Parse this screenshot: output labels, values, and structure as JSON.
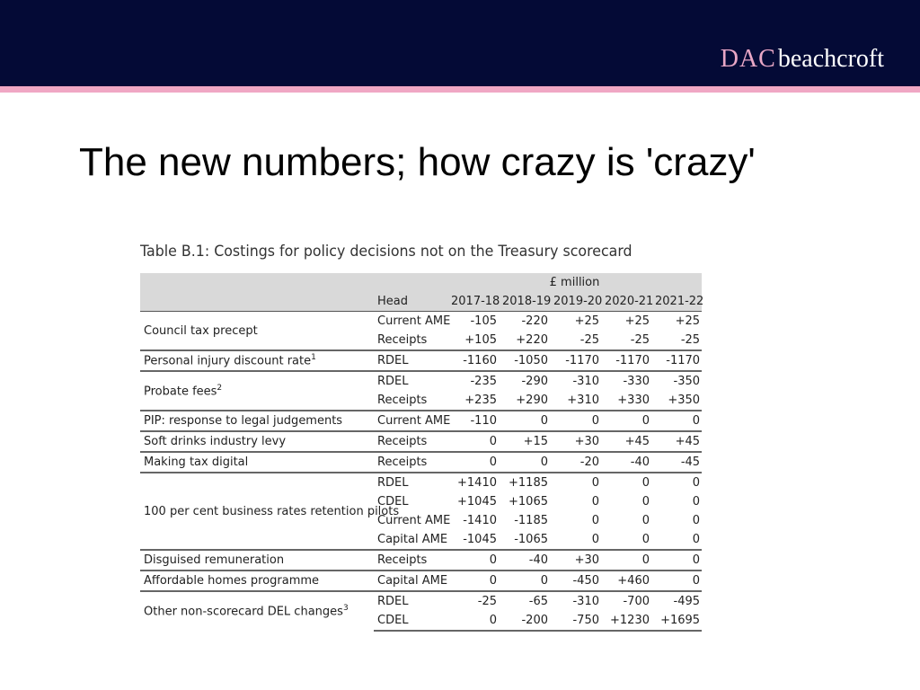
{
  "logo": {
    "part1": "DAC",
    "part2": "beachcroft"
  },
  "slide_title": "The new numbers; how crazy is 'crazy'",
  "table": {
    "caption": "Table B.1: Costings for policy decisions not on the Treasury scorecard",
    "unit": "£ million",
    "head_label": "Head",
    "years": [
      "2017-18",
      "2018-19",
      "2019-20",
      "2020-21",
      "2021-22"
    ],
    "rows": [
      {
        "name": "Council tax precept",
        "sup": "",
        "lines": [
          {
            "head": "Current AME",
            "values": [
              "-105",
              "-220",
              "+25",
              "+25",
              "+25"
            ]
          },
          {
            "head": "Receipts",
            "values": [
              "+105",
              "+220",
              "-25",
              "-25",
              "-25"
            ]
          }
        ]
      },
      {
        "name": "Personal injury discount rate",
        "sup": "1",
        "lines": [
          {
            "head": "RDEL",
            "values": [
              "-1160",
              "-1050",
              "-1170",
              "-1170",
              "-1170"
            ]
          }
        ]
      },
      {
        "name": "Probate fees",
        "sup": "2",
        "lines": [
          {
            "head": "RDEL",
            "values": [
              "-235",
              "-290",
              "-310",
              "-330",
              "-350"
            ]
          },
          {
            "head": "Receipts",
            "values": [
              "+235",
              "+290",
              "+310",
              "+330",
              "+350"
            ]
          }
        ]
      },
      {
        "name": "PIP: response to legal judgements",
        "sup": "",
        "lines": [
          {
            "head": "Current AME",
            "values": [
              "-110",
              "0",
              "0",
              "0",
              "0"
            ]
          }
        ]
      },
      {
        "name": "Soft drinks industry levy",
        "sup": "",
        "lines": [
          {
            "head": "Receipts",
            "values": [
              "0",
              "+15",
              "+30",
              "+45",
              "+45"
            ]
          }
        ]
      },
      {
        "name": "Making tax digital",
        "sup": "",
        "lines": [
          {
            "head": "Receipts",
            "values": [
              "0",
              "0",
              "-20",
              "-40",
              "-45"
            ]
          }
        ]
      },
      {
        "name": "100 per cent business rates retention pilots",
        "sup": "",
        "lines": [
          {
            "head": "RDEL",
            "values": [
              "+1410",
              "+1185",
              "0",
              "0",
              "0"
            ]
          },
          {
            "head": "CDEL",
            "values": [
              "+1045",
              "+1065",
              "0",
              "0",
              "0"
            ]
          },
          {
            "head": "Current AME",
            "values": [
              "-1410",
              "-1185",
              "0",
              "0",
              "0"
            ]
          },
          {
            "head": "Capital AME",
            "values": [
              "-1045",
              "-1065",
              "0",
              "0",
              "0"
            ]
          }
        ]
      },
      {
        "name": "Disguised remuneration",
        "sup": "",
        "lines": [
          {
            "head": "Receipts",
            "values": [
              "0",
              "-40",
              "+30",
              "0",
              "0"
            ]
          }
        ]
      },
      {
        "name": "Affordable homes programme",
        "sup": "",
        "lines": [
          {
            "head": "Capital AME",
            "values": [
              "0",
              "0",
              "-450",
              "+460",
              "0"
            ]
          }
        ]
      },
      {
        "name": "Other non-scorecard DEL changes",
        "sup": "3",
        "lines": [
          {
            "head": "RDEL",
            "values": [
              "-25",
              "-65",
              "-310",
              "-700",
              "-495"
            ]
          },
          {
            "head": "CDEL",
            "values": [
              "0",
              "-200",
              "-750",
              "+1230",
              "+1695"
            ]
          }
        ]
      }
    ]
  }
}
